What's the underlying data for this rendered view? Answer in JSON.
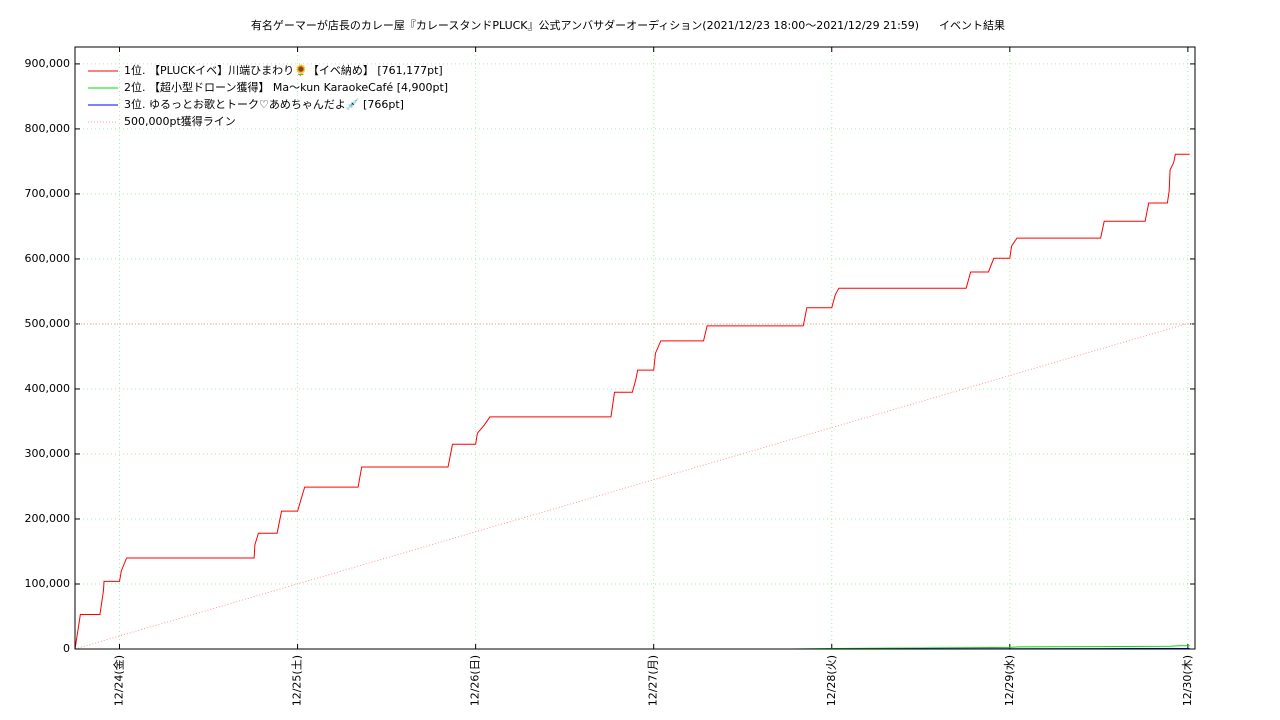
{
  "chart_data": {
    "type": "line",
    "title": "有名ゲーマーが店長のカレー屋『カレースタンドPLUCK』公式アンバサダーオーディション(2021/12/23 18:00〜2021/12/29 21:59)",
    "subtitle": "イベント結果",
    "xlim": [
      23.75,
      30.04
    ],
    "xticks": [
      {
        "value": 24,
        "label": "12/24(金)"
      },
      {
        "value": 25,
        "label": "12/25(土)"
      },
      {
        "value": 26,
        "label": "12/26(日)"
      },
      {
        "value": 27,
        "label": "12/27(月)"
      },
      {
        "value": 28,
        "label": "12/28(火)"
      },
      {
        "value": 29,
        "label": "12/29(水)"
      },
      {
        "value": 30,
        "label": "12/30(木)"
      }
    ],
    "ylim": [
      0,
      926000
    ],
    "yticks": [
      0,
      {
        "value": 100000,
        "label": "100,000"
      },
      {
        "value": 200000,
        "label": "200,000"
      },
      {
        "value": 300000,
        "label": "300,000"
      },
      {
        "value": 400000,
        "label": "400,000"
      },
      {
        "value": 500000,
        "label": "500,000"
      },
      {
        "value": 600000,
        "label": "600,000"
      },
      {
        "value": 700000,
        "label": "700,000"
      },
      {
        "value": 800000,
        "label": "800,000"
      },
      {
        "value": 900000,
        "label": "900,000"
      }
    ],
    "grid": true,
    "legend": "upper left",
    "reference_line": 500000,
    "series": [
      {
        "name": "1位. 【PLUCKイベ】川端ひまわり🌻【イベ納め】 [761,177pt]",
        "color": "#ff0000",
        "x": [
          23.75,
          23.77,
          23.78,
          23.89,
          23.91,
          23.913,
          24.0,
          24.01,
          24.04,
          24.756,
          24.76,
          24.78,
          24.885,
          24.91,
          25.0,
          25.03,
          25.04,
          25.34,
          25.36,
          25.845,
          25.87,
          26.0,
          26.01,
          26.05,
          26.08,
          26.76,
          26.78,
          26.88,
          26.9,
          26.91,
          27.0,
          27.01,
          27.04,
          27.28,
          27.3,
          27.84,
          27.86,
          28.0,
          28.02,
          28.04,
          28.755,
          28.78,
          28.88,
          28.91,
          29.0,
          29.01,
          29.04,
          29.51,
          29.53,
          29.76,
          29.78,
          29.885,
          29.895,
          29.9,
          29.92,
          29.93,
          30.01
        ],
        "values": [
          0,
          35000,
          53000,
          53000,
          90000,
          104000,
          104000,
          120000,
          140000,
          140000,
          160000,
          178000,
          178000,
          212000,
          212000,
          240000,
          249000,
          249000,
          280000,
          280000,
          315000,
          315000,
          332000,
          345000,
          357000,
          357000,
          395000,
          395000,
          415000,
          429000,
          429000,
          455000,
          474000,
          474000,
          497000,
          497000,
          525000,
          525000,
          545000,
          555000,
          555000,
          580000,
          580000,
          601000,
          601000,
          620000,
          632000,
          632000,
          658000,
          658000,
          686000,
          686000,
          705000,
          737000,
          748000,
          761000,
          761000
        ]
      },
      {
        "name": "2位. 【超小型ドローン獲得】 Ma〜kun KaraokeCafé [4,900pt]",
        "color": "#00dd00",
        "x": [
          27.77,
          28.0,
          28.5,
          29.0,
          29.05,
          29.5,
          29.9,
          29.95,
          30.01
        ],
        "values": [
          0,
          800,
          1500,
          2500,
          3200,
          3600,
          4200,
          4900,
          4900
        ]
      },
      {
        "name": "3位. ゆるっとお歌とトーク♡あめちゃんだよ💉 [766pt]",
        "color": "#0000ff",
        "x": [
          27.9,
          28.5,
          29.5,
          30.01
        ],
        "values": [
          0,
          300,
          600,
          766
        ]
      },
      {
        "name": "500,000pt獲得ライン",
        "color": "#ff9999",
        "dash": true,
        "x": [
          23.75,
          29.99
        ],
        "values": [
          0,
          500000
        ]
      }
    ]
  }
}
